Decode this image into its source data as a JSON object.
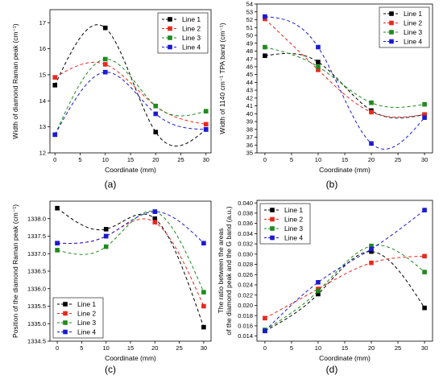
{
  "colors": {
    "Line 1": "#000000",
    "Line 2": "#e8281e",
    "Line 3": "#1e8a1e",
    "Line 4": "#1a1ad2"
  },
  "chart_data": [
    {
      "type": "scatter",
      "panel_label": "(a)",
      "xlabel": "Coordinate (mm)",
      "ylabel": "Width of diamond Raman peak (cm⁻¹)",
      "xlim": [
        -1,
        31
      ],
      "ylim": [
        12,
        17.5
      ],
      "xticks": [
        0,
        5,
        10,
        15,
        20,
        25,
        30
      ],
      "yticks": [
        12,
        13,
        14,
        15,
        16,
        17
      ],
      "ytick_decimals": 0,
      "legend_position": "top-right",
      "fit_lines": true,
      "series": [
        {
          "name": "Line 1",
          "x": [
            0,
            10,
            20,
            30
          ],
          "y": [
            14.6,
            16.8,
            12.8,
            12.9
          ]
        },
        {
          "name": "Line 2",
          "x": [
            0,
            10,
            20,
            30
          ],
          "y": [
            14.9,
            15.4,
            13.8,
            13.1
          ]
        },
        {
          "name": "Line 3",
          "x": [
            0,
            10,
            20,
            30
          ],
          "y": [
            12.7,
            15.6,
            13.8,
            13.6
          ]
        },
        {
          "name": "Line 4",
          "x": [
            0,
            10,
            20,
            30
          ],
          "y": [
            12.7,
            15.1,
            13.5,
            12.9
          ]
        }
      ]
    },
    {
      "type": "scatter",
      "panel_label": "(b)",
      "xlabel": "Coordinate (mm)",
      "ylabel": "Width of 1140 cm⁻¹ TPA band (cm⁻¹)",
      "xlim": [
        -1.5,
        31.5
      ],
      "ylim": [
        35,
        54
      ],
      "xticks": [
        0,
        5,
        10,
        15,
        20,
        25,
        30
      ],
      "yticks": [
        35,
        36,
        37,
        38,
        39,
        40,
        41,
        42,
        43,
        44,
        45,
        46,
        47,
        48,
        49,
        50,
        51,
        52,
        53,
        54
      ],
      "ytick_decimals": 0,
      "legend_position": "top-right",
      "fit_lines": true,
      "series": [
        {
          "name": "Line 1",
          "x": [
            0,
            10,
            20,
            30
          ],
          "y": [
            47.4,
            46.6,
            40.4,
            39.9
          ]
        },
        {
          "name": "Line 2",
          "x": [
            0,
            10,
            20,
            30
          ],
          "y": [
            52.1,
            45.6,
            40.2,
            39.9
          ]
        },
        {
          "name": "Line 3",
          "x": [
            0,
            10,
            20,
            30
          ],
          "y": [
            48.5,
            46.0,
            41.4,
            41.2
          ]
        },
        {
          "name": "Line 4",
          "x": [
            0,
            10,
            20,
            30
          ],
          "y": [
            52.4,
            48.5,
            36.2,
            39.5
          ]
        }
      ]
    },
    {
      "type": "scatter",
      "panel_label": "(c)",
      "xlabel": "Coordinate (mm)",
      "ylabel": "Position of the diamond Raman peak (cm⁻¹)",
      "xlim": [
        -1.5,
        31.5
      ],
      "ylim": [
        1334.5,
        1338.5
      ],
      "xticks": [
        0,
        5,
        10,
        15,
        20,
        25,
        30
      ],
      "yticks": [
        1334.5,
        1335.0,
        1335.5,
        1336.0,
        1336.5,
        1337.0,
        1337.5,
        1338.0
      ],
      "ytick_decimals": 1,
      "legend_position": "bottom-left",
      "fit_lines": true,
      "series": [
        {
          "name": "Line 1",
          "x": [
            0,
            10,
            20,
            30
          ],
          "y": [
            1338.3,
            1337.7,
            1338.0,
            1334.9
          ]
        },
        {
          "name": "Line 2",
          "x": [
            0,
            10,
            20,
            30
          ],
          "y": [
            1337.3,
            1337.5,
            1337.9,
            1335.5
          ]
        },
        {
          "name": "Line 3",
          "x": [
            0,
            10,
            20,
            30
          ],
          "y": [
            1337.1,
            1337.2,
            1338.2,
            1335.9
          ]
        },
        {
          "name": "Line 4",
          "x": [
            0,
            10,
            20,
            30
          ],
          "y": [
            1337.3,
            1337.5,
            1338.2,
            1337.3
          ]
        }
      ]
    },
    {
      "type": "scatter",
      "panel_label": "(d)",
      "xlabel": "Coordinate (mm)",
      "ylabel": "The ratio between the areas of the diamond peak and the G band (a.u.)",
      "ylabel_lines": [
        "The ratio between the areas",
        "of the diamond peak and the G band (a.u.)"
      ],
      "xlim": [
        -1.5,
        31.5
      ],
      "ylim": [
        0.013,
        0.0405
      ],
      "xticks": [
        0,
        5,
        10,
        15,
        20,
        25,
        30
      ],
      "yticks": [
        0.014,
        0.016,
        0.018,
        0.02,
        0.022,
        0.024,
        0.026,
        0.028,
        0.03,
        0.032,
        0.034,
        0.036,
        0.038,
        0.04
      ],
      "ytick_decimals": 3,
      "legend_position": "top-left",
      "fit_lines": true,
      "series": [
        {
          "name": "Line 1",
          "x": [
            0,
            10,
            20,
            30
          ],
          "y": [
            0.015,
            0.0222,
            0.0305,
            0.0195
          ]
        },
        {
          "name": "Line 2",
          "x": [
            0,
            10,
            20,
            30
          ],
          "y": [
            0.0175,
            0.0232,
            0.0283,
            0.0296
          ]
        },
        {
          "name": "Line 3",
          "x": [
            0,
            10,
            20,
            30
          ],
          "y": [
            0.0152,
            0.0228,
            0.0316,
            0.0265
          ]
        },
        {
          "name": "Line 4",
          "x": [
            0,
            10,
            20,
            30
          ],
          "y": [
            0.015,
            0.0245,
            0.031,
            0.0386
          ]
        }
      ]
    }
  ]
}
